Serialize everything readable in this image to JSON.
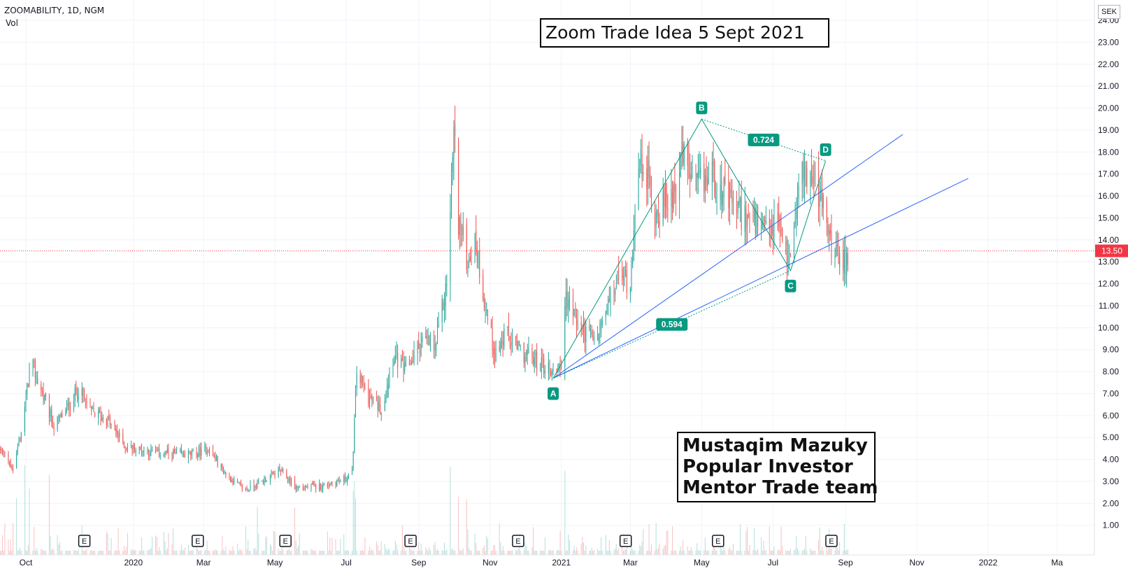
{
  "header": {
    "symbol": "ZOOMABILITY, 1D, NGM",
    "vol_label": "Vol",
    "currency": "SEK"
  },
  "annotations": {
    "title": "Zoom Trade Idea 5 Sept 2021",
    "author_lines": [
      "Mustaqim Mazuky",
      "Popular Investor",
      "Mentor Trade team"
    ]
  },
  "chart_data": {
    "type": "candlestick",
    "y_ticks": [
      "24.00",
      "23.00",
      "22.00",
      "21.00",
      "20.00",
      "19.00",
      "18.00",
      "17.00",
      "16.00",
      "15.00",
      "14.00",
      "13.00",
      "12.00",
      "11.00",
      "10.00",
      "9.00",
      "8.00",
      "7.00",
      "6.00",
      "5.00",
      "4.00",
      "3.00",
      "2.00",
      "1.00"
    ],
    "ylim": [
      0,
      24.5
    ],
    "x_ticks": [
      {
        "label": "Oct",
        "date": "2019-10-01"
      },
      {
        "label": "2020",
        "date": "2020-01-01"
      },
      {
        "label": "Mar",
        "date": "2020-03-01"
      },
      {
        "label": "May",
        "date": "2020-05-01"
      },
      {
        "label": "Jul",
        "date": "2020-07-01"
      },
      {
        "label": "Sep",
        "date": "2020-09-01"
      },
      {
        "label": "Nov",
        "date": "2020-11-01"
      },
      {
        "label": "2021",
        "date": "2021-01-01"
      },
      {
        "label": "Mar",
        "date": "2021-03-01"
      },
      {
        "label": "May",
        "date": "2021-05-01"
      },
      {
        "label": "Jul",
        "date": "2021-07-01"
      },
      {
        "label": "Sep",
        "date": "2021-09-01"
      },
      {
        "label": "Nov",
        "date": "2021-11-01"
      },
      {
        "label": "2022",
        "date": "2022-01-01"
      },
      {
        "label": "Ma",
        "date": "2022-03-01"
      }
    ],
    "last_price": 13.5,
    "last_price_label": "13.50",
    "price_path": [
      {
        "date": "2019-08-20",
        "price": 5.0
      },
      {
        "date": "2019-09-10",
        "price": 4.4
      },
      {
        "date": "2019-09-20",
        "price": 3.6
      },
      {
        "date": "2019-09-28",
        "price": 5.5
      },
      {
        "date": "2019-10-05",
        "price": 8.5
      },
      {
        "date": "2019-10-15",
        "price": 7.0
      },
      {
        "date": "2019-10-25",
        "price": 5.5
      },
      {
        "date": "2019-11-05",
        "price": 6.3
      },
      {
        "date": "2019-11-15",
        "price": 7.2
      },
      {
        "date": "2019-11-25",
        "price": 6.2
      },
      {
        "date": "2019-12-10",
        "price": 5.8
      },
      {
        "date": "2019-12-25",
        "price": 4.6
      },
      {
        "date": "2020-01-20",
        "price": 4.3
      },
      {
        "date": "2020-02-20",
        "price": 4.2
      },
      {
        "date": "2020-03-05",
        "price": 4.5
      },
      {
        "date": "2020-03-20",
        "price": 3.3
      },
      {
        "date": "2020-04-05",
        "price": 2.6
      },
      {
        "date": "2020-04-20",
        "price": 3.0
      },
      {
        "date": "2020-05-05",
        "price": 3.5
      },
      {
        "date": "2020-05-20",
        "price": 2.7
      },
      {
        "date": "2020-06-10",
        "price": 2.8
      },
      {
        "date": "2020-06-30",
        "price": 3.1
      },
      {
        "date": "2020-07-06",
        "price": 3.4
      },
      {
        "date": "2020-07-10",
        "price": 8.0
      },
      {
        "date": "2020-07-20",
        "price": 6.8
      },
      {
        "date": "2020-08-01",
        "price": 6.3
      },
      {
        "date": "2020-08-10",
        "price": 8.8
      },
      {
        "date": "2020-08-20",
        "price": 8.0
      },
      {
        "date": "2020-09-05",
        "price": 9.5
      },
      {
        "date": "2020-09-15",
        "price": 9.0
      },
      {
        "date": "2020-09-25",
        "price": 12.0
      },
      {
        "date": "2020-10-01",
        "price": 19.0
      },
      {
        "date": "2020-10-05",
        "price": 15.0
      },
      {
        "date": "2020-10-12",
        "price": 13.2
      },
      {
        "date": "2020-10-20",
        "price": 13.8
      },
      {
        "date": "2020-10-28",
        "price": 11.0
      },
      {
        "date": "2020-11-05",
        "price": 8.8
      },
      {
        "date": "2020-11-15",
        "price": 9.7
      },
      {
        "date": "2020-11-25",
        "price": 9.0
      },
      {
        "date": "2020-12-10",
        "price": 8.5
      },
      {
        "date": "2020-12-25",
        "price": 8.0
      },
      {
        "date": "2021-01-02",
        "price": 8.5
      },
      {
        "date": "2021-01-05",
        "price": 11.5
      },
      {
        "date": "2021-01-15",
        "price": 10.2
      },
      {
        "date": "2021-01-30",
        "price": 9.3
      },
      {
        "date": "2021-02-10",
        "price": 11.0
      },
      {
        "date": "2021-02-20",
        "price": 12.5
      },
      {
        "date": "2021-03-01",
        "price": 12.0
      },
      {
        "date": "2021-03-05",
        "price": 16.0
      },
      {
        "date": "2021-03-12",
        "price": 17.8
      },
      {
        "date": "2021-03-22",
        "price": 15.2
      },
      {
        "date": "2021-04-05",
        "price": 16.0
      },
      {
        "date": "2021-04-15",
        "price": 17.8
      },
      {
        "date": "2021-04-25",
        "price": 16.3
      },
      {
        "date": "2021-05-10",
        "price": 17.0
      },
      {
        "date": "2021-05-25",
        "price": 15.6
      },
      {
        "date": "2021-06-10",
        "price": 15.0
      },
      {
        "date": "2021-06-25",
        "price": 14.2
      },
      {
        "date": "2021-07-05",
        "price": 14.8
      },
      {
        "date": "2021-07-15",
        "price": 13.0
      },
      {
        "date": "2021-07-22",
        "price": 16.5
      },
      {
        "date": "2021-07-30",
        "price": 17.2
      },
      {
        "date": "2021-08-10",
        "price": 16.0
      },
      {
        "date": "2021-08-20",
        "price": 13.8
      },
      {
        "date": "2021-08-28",
        "price": 12.7
      },
      {
        "date": "2021-09-05",
        "price": 13.5
      }
    ],
    "pattern": {
      "points": [
        {
          "label": "A",
          "date": "2020-12-25",
          "price": 7.7
        },
        {
          "label": "B",
          "date": "2021-05-01",
          "price": 19.5
        },
        {
          "label": "C",
          "date": "2021-07-16",
          "price": 12.6
        },
        {
          "label": "D",
          "date": "2021-08-15",
          "price": 17.6
        }
      ],
      "ratios": [
        {
          "label": "0.724",
          "from": "B",
          "to": "D"
        },
        {
          "label": "0.594",
          "from": "A",
          "to": "C"
        }
      ]
    },
    "trendlines": [
      {
        "from": {
          "date": "2020-12-25",
          "price": 7.7
        },
        "to": {
          "date": "2021-10-20",
          "price": 18.8
        }
      },
      {
        "from": {
          "date": "2020-12-25",
          "price": 7.7
        },
        "to": {
          "date": "2021-12-15",
          "price": 16.8
        }
      }
    ],
    "earnings_markers": [
      {
        "label": "E",
        "date": "2019-11-20"
      },
      {
        "label": "E",
        "date": "2020-02-25"
      },
      {
        "label": "E",
        "date": "2020-05-10"
      },
      {
        "label": "E",
        "date": "2020-08-25"
      },
      {
        "label": "E",
        "date": "2020-11-25"
      },
      {
        "label": "E",
        "date": "2021-02-25"
      },
      {
        "label": "E",
        "date": "2021-05-15"
      },
      {
        "label": "E",
        "date": "2021-08-20"
      }
    ],
    "colors": {
      "up": "#26a69a",
      "down": "#ef5350",
      "pattern": "#089981",
      "trend": "#2962ff",
      "price_line": "#f23645"
    }
  }
}
